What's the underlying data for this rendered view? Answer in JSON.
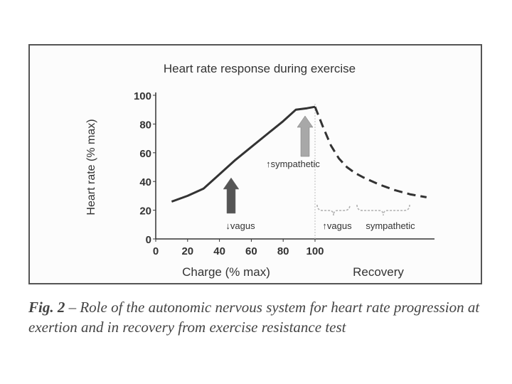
{
  "chart_data": {
    "type": "line",
    "title": "Heart rate response during exercise",
    "ylabel": "Heart rate (% max)",
    "xlabel": "Charge (% max)",
    "recovery_label": "Recovery",
    "xlim": [
      0,
      175
    ],
    "ylim": [
      0,
      100
    ],
    "x_ticks": [
      0,
      20,
      40,
      60,
      80,
      100
    ],
    "y_ticks": [
      0,
      20,
      40,
      60,
      80,
      100
    ],
    "series": [
      {
        "name": "exercise",
        "style": "solid",
        "x": [
          10,
          20,
          30,
          40,
          50,
          60,
          70,
          80,
          88,
          95,
          100
        ],
        "y": [
          26,
          30,
          35,
          45,
          55,
          64,
          73,
          82,
          90,
          91,
          92
        ]
      },
      {
        "name": "recovery",
        "style": "dashed",
        "x": [
          100,
          105,
          110,
          115,
          120,
          125,
          130,
          140,
          150,
          160,
          170
        ],
        "y": [
          92,
          78,
          65,
          56,
          50,
          46,
          43,
          38,
          34,
          31,
          29
        ]
      }
    ],
    "annotations": {
      "vagus_down": "↓vagus",
      "sympathetic_up": "↑sympathetic",
      "vagus_up": "↑vagus",
      "sympathetic": "sympathetic"
    },
    "colors": {
      "line": "#333333",
      "arrow_dark": "#555555",
      "arrow_light": "#a8a8a8",
      "brace": "#b0b0b0"
    }
  },
  "caption": {
    "lead": "Fig. 2",
    "text": " – Role of the autonomic nervous system for heart rate progression at exertion and in recovery from exercise resistance test"
  }
}
